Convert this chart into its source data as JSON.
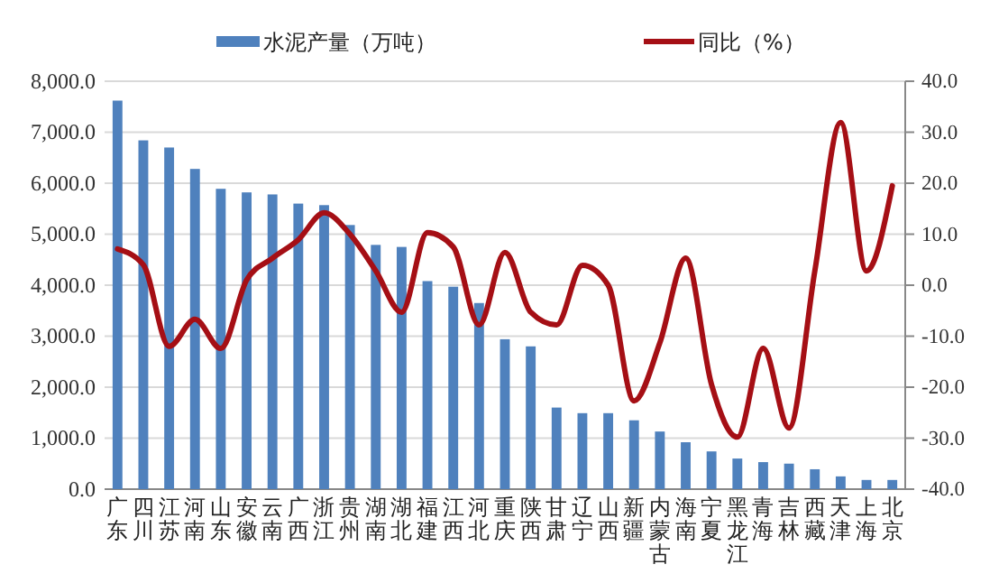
{
  "chart_data": {
    "type": "bar",
    "categories": [
      "广东",
      "四川",
      "江苏",
      "河南",
      "山东",
      "安徽",
      "云南",
      "广西",
      "浙江",
      "贵州",
      "湖南",
      "湖北",
      "福建",
      "江西",
      "河北",
      "重庆",
      "陕西",
      "甘肃",
      "辽宁",
      "山西",
      "新疆",
      "内蒙古",
      "海南",
      "宁夏",
      "黑龙江",
      "青海",
      "吉林",
      "西藏",
      "天津",
      "上海",
      "北京"
    ],
    "series": [
      {
        "name": "水泥产量（万吨）",
        "color": "#4f81bd",
        "values": [
          7620,
          6840,
          6700,
          6280,
          5890,
          5820,
          5780,
          5600,
          5570,
          5180,
          4790,
          4750,
          4080,
          3970,
          3650,
          2940,
          2800,
          1600,
          1490,
          1490,
          1350,
          1130,
          920,
          740,
          600,
          530,
          500,
          390,
          250,
          180,
          180
        ]
      },
      {
        "name": "同比（%）",
        "type": "line",
        "axis": "y2",
        "color": "#a50f15",
        "values": [
          7.1,
          4,
          -12,
          -6.7,
          -12.4,
          1,
          5.3,
          8.9,
          14.2,
          10,
          2.8,
          -5.3,
          10.3,
          7.5,
          -7.8,
          6.4,
          -5.3,
          -7.8,
          3.9,
          0,
          -22.7,
          -11.3,
          5.3,
          -19.5,
          -29.8,
          -12.4,
          -28,
          2.8,
          31.9,
          2.8,
          19.5
        ]
      }
    ],
    "ylim": [
      0,
      8000
    ],
    "yticks": [
      {
        "value": 0,
        "label": "0.0"
      },
      {
        "value": 1000,
        "label": "1,000.0"
      },
      {
        "value": 2000,
        "label": "2,000.0"
      },
      {
        "value": 3000,
        "label": "3,000.0"
      },
      {
        "value": 4000,
        "label": "4,000.0"
      },
      {
        "value": 5000,
        "label": "5,000.0"
      },
      {
        "value": 6000,
        "label": "6,000.0"
      },
      {
        "value": 7000,
        "label": "7,000.0"
      },
      {
        "value": 8000,
        "label": "8,000.0"
      }
    ],
    "y2lim": [
      -40,
      40
    ],
    "y2ticks": [
      {
        "value": -40,
        "label": "-40.0"
      },
      {
        "value": -30,
        "label": "-30.0"
      },
      {
        "value": -20,
        "label": "-20.0"
      },
      {
        "value": -10,
        "label": "-10.0"
      },
      {
        "value": 0,
        "label": "0.0"
      },
      {
        "value": 10,
        "label": "10.0"
      },
      {
        "value": 20,
        "label": "20.0"
      },
      {
        "value": 30,
        "label": "30.0"
      },
      {
        "value": 40,
        "label": "40.0"
      }
    ],
    "grid": "y",
    "legend": "top",
    "marker": "none",
    "line_style": "solid"
  }
}
